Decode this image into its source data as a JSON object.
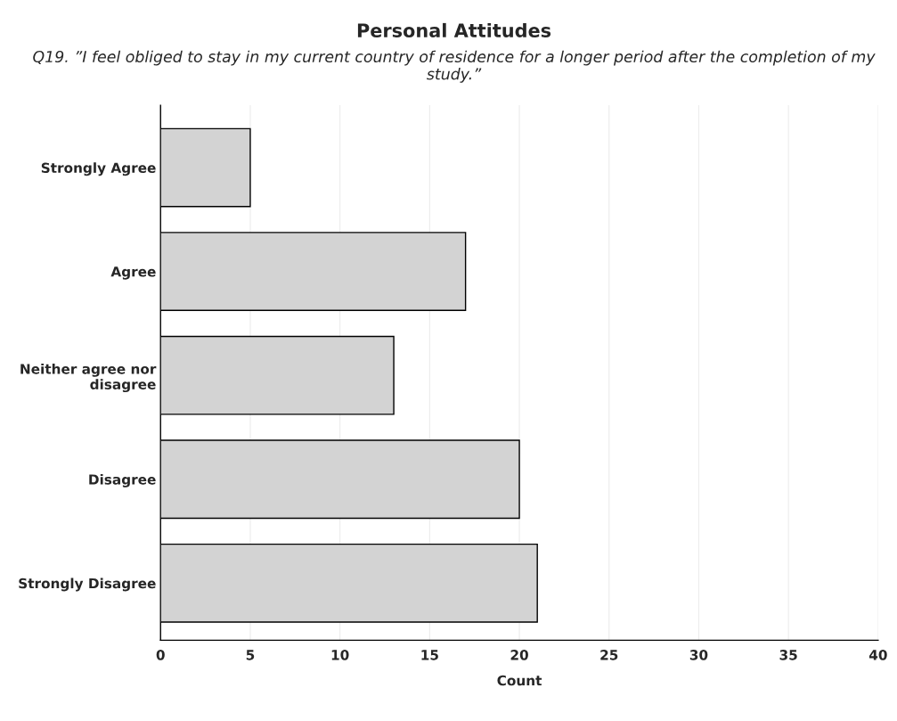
{
  "chart_data": {
    "type": "bar",
    "orientation": "horizontal",
    "title": "Personal Attitudes",
    "subtitle": "Q19. ”I feel obliged to stay in my current country of residence for a longer period after the completion of my study.”",
    "xlabel": "Count",
    "categories": [
      "Strongly Agree",
      "Agree",
      "Neither agree nor\ndisagree",
      "Disagree",
      "Strongly Disagree"
    ],
    "values": [
      5,
      17,
      13,
      20,
      21
    ],
    "color": "#d3d3d3",
    "xlim": [
      0,
      40
    ],
    "xticks": [
      0,
      5,
      10,
      15,
      20,
      25,
      30,
      35,
      40
    ],
    "grid": "x"
  }
}
